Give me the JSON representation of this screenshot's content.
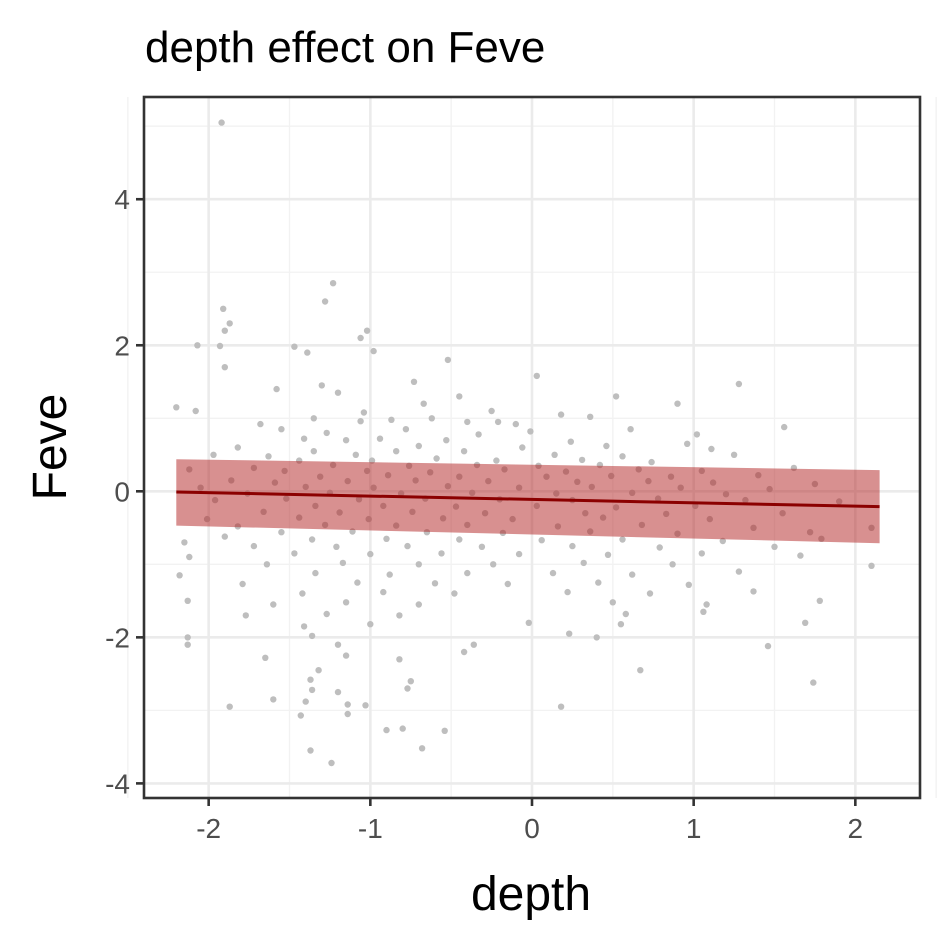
{
  "chart_data": {
    "type": "scatter",
    "title": "depth effect on Feve",
    "xlabel": "depth",
    "ylabel": "Feve",
    "xlim": [
      -2.4,
      2.4
    ],
    "ylim": [
      -4.2,
      5.4
    ],
    "xticks": [
      -2,
      -1,
      0,
      1,
      2
    ],
    "yticks": [
      -4,
      -2,
      0,
      2,
      4
    ],
    "xtick_labels": [
      "-2",
      "-1",
      "0",
      "1",
      "2"
    ],
    "ytick_labels": [
      "-4",
      "-2",
      "0",
      "2",
      "4"
    ],
    "grid": true,
    "colors": {
      "points": "#bebebe",
      "fit_line": "#8b0000",
      "ribbon": "#b22222",
      "panel_border": "#333333",
      "grid": "#ebebeb"
    },
    "fit": {
      "x": [
        -2.2,
        2.15
      ],
      "y": [
        -0.01,
        -0.21
      ],
      "ci_lower": [
        -0.47,
        -0.71
      ],
      "ci_upper": [
        0.44,
        0.29
      ]
    },
    "points": [
      [
        -1.92,
        5.05
      ],
      [
        -1.23,
        2.85
      ],
      [
        -1.28,
        2.6
      ],
      [
        -1.91,
        2.5
      ],
      [
        -1.87,
        2.3
      ],
      [
        -1.9,
        2.2
      ],
      [
        -1.02,
        2.2
      ],
      [
        -1.06,
        2.1
      ],
      [
        -2.07,
        2.0
      ],
      [
        -1.93,
        1.99
      ],
      [
        -1.47,
        1.98
      ],
      [
        -1.39,
        1.9
      ],
      [
        -0.98,
        1.92
      ],
      [
        -1.9,
        1.7
      ],
      [
        -0.52,
        1.8
      ],
      [
        -0.73,
        1.5
      ],
      [
        0.03,
        1.58
      ],
      [
        -1.3,
        1.45
      ],
      [
        -1.58,
        1.4
      ],
      [
        -1.2,
        1.35
      ],
      [
        1.28,
        1.47
      ],
      [
        -2.08,
        1.1
      ],
      [
        -2.2,
        1.15
      ],
      [
        0.52,
        1.3
      ],
      [
        -0.45,
        1.3
      ],
      [
        -0.67,
        1.2
      ],
      [
        0.9,
        1.2
      ],
      [
        -0.25,
        1.1
      ],
      [
        -1.04,
        1.08
      ],
      [
        0.18,
        1.05
      ],
      [
        -1.35,
        1.0
      ],
      [
        -1.06,
        0.96
      ],
      [
        -0.87,
        0.98
      ],
      [
        -0.62,
        1.0
      ],
      [
        -0.4,
        0.95
      ],
      [
        -0.21,
        0.95
      ],
      [
        0.36,
        1.02
      ],
      [
        -1.68,
        0.92
      ],
      [
        -0.1,
        0.92
      ],
      [
        0.61,
        0.85
      ],
      [
        1.02,
        0.78
      ],
      [
        1.56,
        0.88
      ],
      [
        -1.55,
        0.85
      ],
      [
        -1.27,
        0.8
      ],
      [
        -0.78,
        0.85
      ],
      [
        -0.33,
        0.78
      ],
      [
        -0.01,
        0.82
      ],
      [
        -1.41,
        0.72
      ],
      [
        -1.15,
        0.7
      ],
      [
        -0.94,
        0.72
      ],
      [
        -0.53,
        0.7
      ],
      [
        0.24,
        0.68
      ],
      [
        0.96,
        0.65
      ],
      [
        -1.82,
        0.6
      ],
      [
        -0.7,
        0.62
      ],
      [
        -0.06,
        0.6
      ],
      [
        0.46,
        0.62
      ],
      [
        1.11,
        0.58
      ],
      [
        -1.97,
        0.5
      ],
      [
        -1.63,
        0.48
      ],
      [
        -1.35,
        0.55
      ],
      [
        -1.09,
        0.5
      ],
      [
        -0.84,
        0.55
      ],
      [
        -0.42,
        0.55
      ],
      [
        0.14,
        0.5
      ],
      [
        0.56,
        0.48
      ],
      [
        1.25,
        0.5
      ],
      [
        -1.44,
        0.42
      ],
      [
        -0.99,
        0.42
      ],
      [
        -0.59,
        0.45
      ],
      [
        -0.22,
        0.42
      ],
      [
        0.31,
        0.43
      ],
      [
        0.74,
        0.4
      ],
      [
        -1.23,
        0.36
      ],
      [
        -0.76,
        0.35
      ],
      [
        -0.34,
        0.36
      ],
      [
        0.04,
        0.35
      ],
      [
        0.42,
        0.36
      ],
      [
        1.62,
        0.32
      ],
      [
        -2.12,
        0.3
      ],
      [
        -1.72,
        0.32
      ],
      [
        -1.53,
        0.28
      ],
      [
        -1.02,
        0.28
      ],
      [
        -0.63,
        0.26
      ],
      [
        -0.17,
        0.3
      ],
      [
        0.21,
        0.27
      ],
      [
        0.66,
        0.3
      ],
      [
        1.05,
        0.28
      ],
      [
        -1.31,
        0.2
      ],
      [
        -0.89,
        0.22
      ],
      [
        -0.45,
        0.2
      ],
      [
        0.09,
        0.2
      ],
      [
        0.49,
        0.21
      ],
      [
        0.86,
        0.2
      ],
      [
        1.4,
        0.22
      ],
      [
        -1.86,
        0.15
      ],
      [
        -1.59,
        0.12
      ],
      [
        -1.14,
        0.14
      ],
      [
        -0.72,
        0.15
      ],
      [
        -0.27,
        0.14
      ],
      [
        0.28,
        0.13
      ],
      [
        0.72,
        0.14
      ],
      [
        1.12,
        0.12
      ],
      [
        1.75,
        0.1
      ],
      [
        -2.05,
        0.05
      ],
      [
        -1.4,
        0.06
      ],
      [
        -0.98,
        0.05
      ],
      [
        -0.52,
        0.07
      ],
      [
        -0.08,
        0.05
      ],
      [
        0.37,
        0.06
      ],
      [
        0.92,
        0.05
      ],
      [
        1.47,
        0.03
      ],
      [
        -1.76,
        -0.03
      ],
      [
        -1.25,
        -0.02
      ],
      [
        -0.81,
        -0.03
      ],
      [
        -0.37,
        -0.02
      ],
      [
        0.15,
        -0.03
      ],
      [
        0.62,
        -0.02
      ],
      [
        1.2,
        -0.04
      ],
      [
        -1.96,
        -0.12
      ],
      [
        -1.52,
        -0.1
      ],
      [
        -1.07,
        -0.11
      ],
      [
        -0.66,
        -0.1
      ],
      [
        -0.2,
        -0.11
      ],
      [
        0.25,
        -0.12
      ],
      [
        0.78,
        -0.1
      ],
      [
        1.32,
        -0.12
      ],
      [
        1.9,
        -0.14
      ],
      [
        -1.34,
        -0.2
      ],
      [
        -0.92,
        -0.2
      ],
      [
        -0.47,
        -0.21
      ],
      [
        0.03,
        -0.2
      ],
      [
        0.52,
        -0.22
      ],
      [
        1.01,
        -0.2
      ],
      [
        -1.66,
        -0.28
      ],
      [
        -1.19,
        -0.29
      ],
      [
        -0.74,
        -0.28
      ],
      [
        -0.29,
        -0.3
      ],
      [
        0.33,
        -0.3
      ],
      [
        0.83,
        -0.31
      ],
      [
        1.55,
        -0.3
      ],
      [
        -2.01,
        -0.38
      ],
      [
        -1.44,
        -0.36
      ],
      [
        -1.01,
        -0.38
      ],
      [
        -0.55,
        -0.37
      ],
      [
        -0.12,
        -0.38
      ],
      [
        0.44,
        -0.36
      ],
      [
        1.1,
        -0.38
      ],
      [
        -1.82,
        -0.48
      ],
      [
        -1.28,
        -0.46
      ],
      [
        -0.84,
        -0.47
      ],
      [
        -0.4,
        -0.46
      ],
      [
        0.16,
        -0.48
      ],
      [
        0.68,
        -0.46
      ],
      [
        1.37,
        -0.5
      ],
      [
        2.1,
        -0.5
      ],
      [
        -1.55,
        -0.56
      ],
      [
        -1.11,
        -0.55
      ],
      [
        -0.65,
        -0.56
      ],
      [
        -0.18,
        -0.57
      ],
      [
        0.36,
        -0.55
      ],
      [
        0.9,
        -0.58
      ],
      [
        1.72,
        -0.56
      ],
      [
        -2.15,
        -0.7
      ],
      [
        -1.9,
        -0.62
      ],
      [
        -1.36,
        -0.66
      ],
      [
        -0.9,
        -0.65
      ],
      [
        -0.45,
        -0.66
      ],
      [
        0.06,
        -0.67
      ],
      [
        0.56,
        -0.66
      ],
      [
        1.18,
        -0.68
      ],
      [
        1.79,
        -0.65
      ],
      [
        -1.72,
        -0.75
      ],
      [
        -1.21,
        -0.76
      ],
      [
        -0.77,
        -0.75
      ],
      [
        -0.31,
        -0.76
      ],
      [
        0.25,
        -0.75
      ],
      [
        0.79,
        -0.77
      ],
      [
        1.5,
        -0.76
      ],
      [
        -2.12,
        -0.9
      ],
      [
        -1.47,
        -0.85
      ],
      [
        -1.0,
        -0.86
      ],
      [
        -0.56,
        -0.85
      ],
      [
        -0.08,
        -0.86
      ],
      [
        0.47,
        -0.87
      ],
      [
        1.05,
        -0.85
      ],
      [
        1.66,
        -0.88
      ],
      [
        -1.64,
        -1.0
      ],
      [
        -1.17,
        -0.98
      ],
      [
        -0.7,
        -1.0
      ],
      [
        -0.24,
        -1.0
      ],
      [
        0.32,
        -0.98
      ],
      [
        0.87,
        -1.0
      ],
      [
        2.1,
        -1.02
      ],
      [
        -2.18,
        -1.15
      ],
      [
        -1.34,
        -1.12
      ],
      [
        -0.88,
        -1.14
      ],
      [
        -0.4,
        -1.12
      ],
      [
        0.13,
        -1.12
      ],
      [
        0.62,
        -1.14
      ],
      [
        1.28,
        -1.1
      ],
      [
        -1.79,
        -1.27
      ],
      [
        -1.08,
        -1.25
      ],
      [
        -0.6,
        -1.26
      ],
      [
        -0.15,
        -1.27
      ],
      [
        0.41,
        -1.25
      ],
      [
        0.97,
        -1.28
      ],
      [
        -1.42,
        -1.4
      ],
      [
        -0.92,
        -1.38
      ],
      [
        -0.48,
        -1.4
      ],
      [
        0.22,
        -1.38
      ],
      [
        0.73,
        -1.4
      ],
      [
        1.37,
        -1.37
      ],
      [
        -2.13,
        -1.5
      ],
      [
        -1.6,
        -1.55
      ],
      [
        -1.15,
        -1.52
      ],
      [
        -0.7,
        -1.55
      ],
      [
        0.5,
        -1.52
      ],
      [
        1.08,
        -1.55
      ],
      [
        1.78,
        -1.5
      ],
      [
        -1.77,
        -1.7
      ],
      [
        -1.27,
        -1.68
      ],
      [
        -0.82,
        -1.7
      ],
      [
        0.58,
        -1.68
      ],
      [
        1.06,
        -1.65
      ],
      [
        -1.41,
        -1.85
      ],
      [
        -1.0,
        -1.82
      ],
      [
        -0.02,
        -1.8
      ],
      [
        0.55,
        -1.82
      ],
      [
        1.69,
        -1.8
      ],
      [
        -2.13,
        -2.0
      ],
      [
        -1.36,
        -1.98
      ],
      [
        0.23,
        -1.95
      ],
      [
        0.4,
        -2.0
      ],
      [
        -2.13,
        -2.1
      ],
      [
        -1.2,
        -2.1
      ],
      [
        -0.36,
        -2.1
      ],
      [
        1.46,
        -2.12
      ],
      [
        -1.15,
        -2.25
      ],
      [
        -0.42,
        -2.2
      ],
      [
        -0.82,
        -2.3
      ],
      [
        -1.65,
        -2.28
      ],
      [
        -1.32,
        -2.45
      ],
      [
        0.67,
        -2.45
      ],
      [
        -1.37,
        -2.58
      ],
      [
        -0.75,
        -2.6
      ],
      [
        1.74,
        -2.62
      ],
      [
        -0.77,
        -2.7
      ],
      [
        -1.36,
        -2.72
      ],
      [
        -1.2,
        -2.75
      ],
      [
        -1.6,
        -2.85
      ],
      [
        -1.4,
        -2.88
      ],
      [
        -1.14,
        -2.92
      ],
      [
        -1.87,
        -2.95
      ],
      [
        -1.03,
        -2.93
      ],
      [
        0.18,
        -2.95
      ],
      [
        -1.14,
        -3.05
      ],
      [
        -1.43,
        -3.07
      ],
      [
        -0.9,
        -3.27
      ],
      [
        -0.8,
        -3.25
      ],
      [
        -0.54,
        -3.28
      ],
      [
        -0.68,
        -3.52
      ],
      [
        -1.37,
        -3.55
      ],
      [
        -1.24,
        -3.72
      ]
    ]
  }
}
